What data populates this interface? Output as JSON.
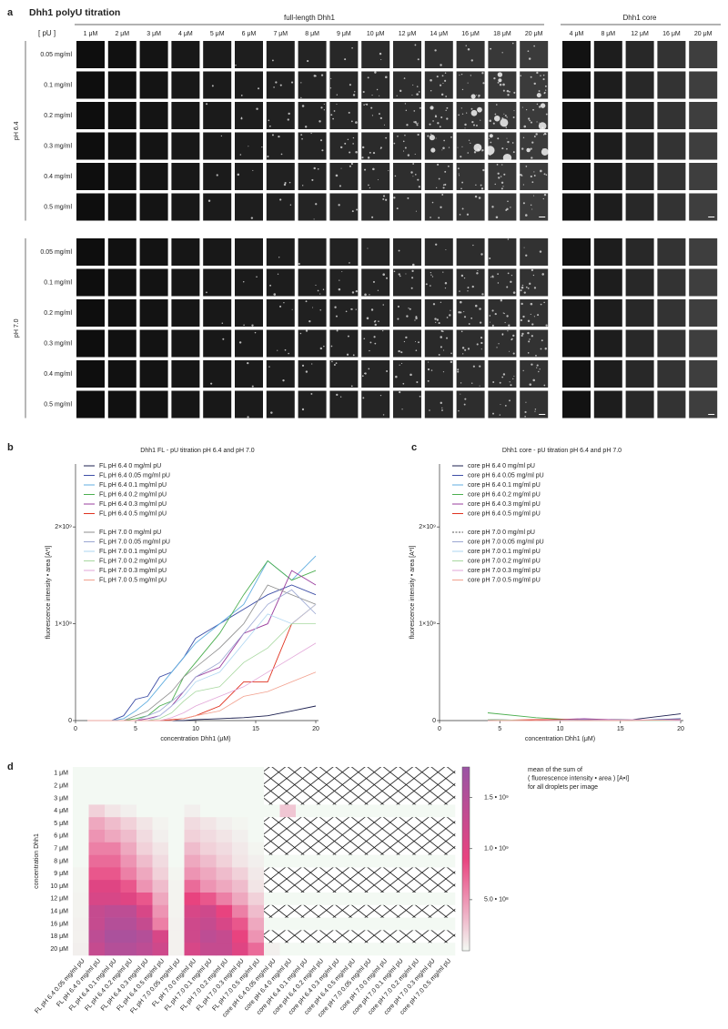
{
  "panel_labels": [
    "a",
    "b",
    "c",
    "d"
  ],
  "panel_a": {
    "title": "Dhh1 polyU titration",
    "fl_header": "full-length Dhh1",
    "core_header": "Dhh1 core",
    "pu_header": "[ pU ]",
    "fl_columns": [
      "1 μM",
      "2 μM",
      "3 μM",
      "4 μM",
      "5 μM",
      "6 μM",
      "7 μM",
      "8 μM",
      "9 μM",
      "10 μM",
      "12 μM",
      "14 μM",
      "16 μM",
      "18 μM",
      "20 μM"
    ],
    "core_columns": [
      "4 μM",
      "8 μM",
      "12 μM",
      "16 μM",
      "20 μM"
    ],
    "ph_groups": [
      {
        "label": "pH 6.4",
        "rows": [
          "0.05 mg/ml",
          "0.1 mg/ml",
          "0.2 mg/ml",
          "0.3 mg/ml",
          "0.4 mg/ml",
          "0.5 mg/ml"
        ]
      },
      {
        "label": "pH 7.0",
        "rows": [
          "0.05 mg/ml",
          "0.1 mg/ml",
          "0.2 mg/ml",
          "0.3 mg/ml",
          "0.4 mg/ml",
          "0.5 mg/ml"
        ]
      }
    ]
  },
  "chart_data": [
    {
      "type": "line",
      "title": "Dhh1 FL - pU titration pH 6.4 and pH 7.0",
      "xlabel": "concentration Dhh1 (μM)",
      "ylabel": "fluorescence intensity • area [A*I]",
      "x": [
        1,
        2,
        3,
        4,
        5,
        6,
        7,
        8,
        9,
        10,
        12,
        14,
        16,
        18,
        20
      ],
      "xlim": [
        0,
        20
      ],
      "ylim": [
        0,
        2650000000.0
      ],
      "xticks": [
        0,
        5,
        10,
        15,
        20
      ],
      "yticks": [
        0,
        {
          "value": 1000000000.0,
          "label": "1×10⁹"
        },
        {
          "value": 2000000000.0,
          "label": "2×10⁹"
        }
      ],
      "series": [
        {
          "name": "FL pH 6.4 0 mg/ml pU",
          "color": "#1b1f4f",
          "values": [
            0,
            0,
            0,
            0,
            0,
            0,
            0,
            0,
            0,
            10000000.0,
            20000000.0,
            30000000.0,
            50000000.0,
            100000000.0,
            150000000.0
          ]
        },
        {
          "name": "FL pH 6.4 0.05 mg/ml pU",
          "color": "#3d4ea6",
          "values": [
            0,
            0,
            0,
            50000000.0,
            220000000.0,
            250000000.0,
            450000000.0,
            500000000.0,
            650000000.0,
            850000000.0,
            1000000000.0,
            1150000000.0,
            1300000000.0,
            1400000000.0,
            1300000000.0
          ]
        },
        {
          "name": "FL pH 6.4 0.1 mg/ml pU",
          "color": "#62aee0",
          "values": [
            0,
            0,
            0,
            20000000.0,
            100000000.0,
            200000000.0,
            350000000.0,
            500000000.0,
            650000000.0,
            800000000.0,
            1000000000.0,
            1200000000.0,
            1650000000.0,
            1450000000.0,
            1700000000.0
          ]
        },
        {
          "name": "FL pH 6.4 0.2 mg/ml pU",
          "color": "#4caf50",
          "values": [
            0,
            0,
            0,
            0,
            20000000.0,
            50000000.0,
            150000000.0,
            200000000.0,
            450000000.0,
            600000000.0,
            900000000.0,
            1300000000.0,
            1650000000.0,
            1450000000.0,
            1550000000.0
          ]
        },
        {
          "name": "FL pH 6.4 0.3 mg/ml pU",
          "color": "#9a3e9e",
          "values": [
            0,
            0,
            0,
            0,
            0,
            20000000.0,
            50000000.0,
            150000000.0,
            300000000.0,
            450000000.0,
            550000000.0,
            900000000.0,
            1000000000.0,
            1550000000.0,
            1400000000.0
          ]
        },
        {
          "name": "FL pH 6.4 0.5 mg/ml pU",
          "color": "#e0321f",
          "values": [
            0,
            0,
            0,
            0,
            0,
            0,
            0,
            10000000.0,
            20000000.0,
            50000000.0,
            150000000.0,
            400000000.0,
            400000000.0,
            1000000000.0,
            1200000000.0
          ]
        },
        {
          "name": "FL pH 7.0 0 mg/ml pU",
          "color": "#8c8c8c",
          "values": [
            0,
            0,
            0,
            0,
            50000000.0,
            100000000.0,
            200000000.0,
            300000000.0,
            450000000.0,
            550000000.0,
            750000000.0,
            1000000000.0,
            1400000000.0,
            1300000000.0,
            1200000000.0
          ]
        },
        {
          "name": "FL pH 7.0 0.05 mg/ml pU",
          "color": "#9aa6d2",
          "values": [
            0,
            0,
            0,
            0,
            0,
            50000000.0,
            100000000.0,
            200000000.0,
            300000000.0,
            450000000.0,
            600000000.0,
            900000000.0,
            1200000000.0,
            1350000000.0,
            1100000000.0
          ]
        },
        {
          "name": "FL pH 7.0 0.1 mg/ml pU",
          "color": "#aed6f1",
          "values": [
            0,
            0,
            0,
            0,
            0,
            0,
            50000000.0,
            150000000.0,
            250000000.0,
            400000000.0,
            500000000.0,
            800000000.0,
            1100000000.0,
            1000000000.0,
            1200000000.0
          ]
        },
        {
          "name": "FL pH 7.0 0.2 mg/ml pU",
          "color": "#a8d8a0",
          "values": [
            0,
            0,
            0,
            0,
            0,
            0,
            20000000.0,
            80000000.0,
            200000000.0,
            300000000.0,
            350000000.0,
            600000000.0,
            750000000.0,
            1000000000.0,
            1000000000.0
          ]
        },
        {
          "name": "FL pH 7.0 0.3 mg/ml pU",
          "color": "#e2a6d8",
          "values": [
            0,
            0,
            0,
            0,
            0,
            0,
            0,
            30000000.0,
            80000000.0,
            150000000.0,
            250000000.0,
            350000000.0,
            500000000.0,
            650000000.0,
            800000000.0
          ]
        },
        {
          "name": "FL pH 7.0 0.5 mg/ml pU",
          "color": "#f2a08e",
          "values": [
            0,
            0,
            0,
            0,
            0,
            0,
            0,
            0,
            20000000.0,
            50000000.0,
            100000000.0,
            250000000.0,
            300000000.0,
            400000000.0,
            500000000.0
          ]
        }
      ]
    },
    {
      "type": "line",
      "title": "Dhh1 core - pU titration pH 6.4 and pH 7.0",
      "xlabel": "concentration Dhh1 (μM)",
      "ylabel": "fluorescence intensity • area [A*I]",
      "x": [
        4,
        8,
        12,
        16,
        20
      ],
      "xlim": [
        0,
        20
      ],
      "ylim": [
        0,
        2650000000.0
      ],
      "xticks": [
        0,
        5,
        10,
        15,
        20
      ],
      "yticks": [
        0,
        {
          "value": 1000000000.0,
          "label": "1×10⁹"
        },
        {
          "value": 2000000000.0,
          "label": "2×10⁹"
        }
      ],
      "series": [
        {
          "name": "core pH 6.4 0 mg/ml pU",
          "color": "#1b1f4f",
          "values": [
            10000000.0,
            0,
            10000000.0,
            10000000.0,
            70000000.0
          ]
        },
        {
          "name": "core pH 6.4 0.05 mg/ml pU",
          "color": "#3d4ea6",
          "values": [
            0,
            0,
            10000000.0,
            0,
            20000000.0
          ]
        },
        {
          "name": "core pH 6.4 0.1 mg/ml pU",
          "color": "#62aee0",
          "values": [
            0,
            0,
            0,
            0,
            10000000.0
          ]
        },
        {
          "name": "core pH 6.4 0.2 mg/ml pU",
          "color": "#4caf50",
          "values": [
            80000000.0,
            30000000.0,
            0,
            0,
            0
          ]
        },
        {
          "name": "core pH 6.4 0.3 mg/ml pU",
          "color": "#9a3e9e",
          "values": [
            0,
            0,
            20000000.0,
            0,
            10000000.0
          ]
        },
        {
          "name": "core pH 6.4 0.5 mg/ml pU",
          "color": "#e0321f",
          "values": [
            0,
            10000000.0,
            10000000.0,
            0,
            0
          ]
        },
        {
          "name": "core pH 7.0 0 mg/ml pU",
          "color": "#555555",
          "dashed": true,
          "values": [
            0,
            0,
            0,
            0,
            0
          ]
        },
        {
          "name": "core pH 7.0 0.05 mg/ml pU",
          "color": "#9aa6d2",
          "values": [
            0,
            0,
            10000000.0,
            0,
            0
          ]
        },
        {
          "name": "core pH 7.0 0.1 mg/ml pU",
          "color": "#aed6f1",
          "values": [
            0,
            0,
            0,
            0,
            0
          ]
        },
        {
          "name": "core pH 7.0 0.2 mg/ml pU",
          "color": "#a8d8a0",
          "values": [
            10000000.0,
            0,
            0,
            0,
            0
          ]
        },
        {
          "name": "core pH 7.0 0.3 mg/ml pU",
          "color": "#e2a6d8",
          "values": [
            0,
            0,
            0,
            10000000.0,
            0
          ]
        },
        {
          "name": "core pH 7.0 0.5 mg/ml pU",
          "color": "#f2a08e",
          "values": [
            0,
            0,
            0,
            0,
            10000000.0
          ]
        }
      ]
    },
    {
      "type": "heatmap",
      "ylabel": "concentration Dhh1",
      "rows": [
        "1 μM",
        "2 μM",
        "3 μM",
        "4 μM",
        "5 μM",
        "6 μM",
        "7 μM",
        "8 μM",
        "9 μM",
        "10 μM",
        "12 μM",
        "14 μM",
        "16 μM",
        "18 μM",
        "20 μM"
      ],
      "columns": [
        "FL pH 6.4 0.05 mg/ml pU",
        "FL pH 6.4 0 mg/ml pU",
        "FL pH 6.4 0.1 mg/ml pU",
        "FL pH 6.4 0.2 mg/ml pU",
        "FL pH 6.4 0.3 mg/ml pU",
        "FL pH 6.4 0.5 mg/ml pU",
        "FL pH 7.0 0.05 mg/ml pU",
        "FL pH 7.0 0 mg/ml pU",
        "FL pH 7.0 0.1 mg/ml pU",
        "FL pH 7.0 0.2 mg/ml pU",
        "FL pH 7.0 0.3 mg/ml pU",
        "FL pH 7.0 0.5 mg/ml pU",
        "core pH 6.4 0.05 mg/ml pU",
        "core pH 6.4 0 mg/ml pU",
        "core pH 6.4 0.1 mg/ml pU",
        "core pH 6.4 0.2 mg/ml pU",
        "core pH 6.4 0.3 mg/ml pU",
        "core pH 6.4 0.5 mg/ml pU",
        "core pH 7.0 0.05 mg/ml pU",
        "core pH 7.0 0 mg/ml pU",
        "core pH 7.0 0.1 mg/ml pU",
        "core pH 7.0 0.2 mg/ml pU",
        "core pH 7.0 0.3 mg/ml pU",
        "core pH 7.0 0.5 mg/ml pU"
      ],
      "values": [
        [
          0,
          0,
          0,
          0,
          0,
          0,
          0,
          0,
          0,
          0,
          0,
          0,
          null,
          null,
          null,
          null,
          null,
          null,
          null,
          null,
          null,
          null,
          null,
          null
        ],
        [
          0,
          0,
          0,
          0,
          0,
          0,
          0,
          0,
          0,
          0,
          0,
          0,
          null,
          null,
          null,
          null,
          null,
          null,
          null,
          null,
          null,
          null,
          null,
          null
        ],
        [
          0,
          0,
          0,
          0,
          0,
          0,
          0,
          0,
          0,
          0,
          0,
          0,
          null,
          null,
          null,
          null,
          null,
          null,
          null,
          null,
          null,
          null,
          null,
          null
        ],
        [
          0,
          200000000.0,
          100000000.0,
          50000000.0,
          0,
          0,
          0,
          50000000.0,
          0,
          0,
          0,
          0,
          0,
          250000000.0,
          0,
          0,
          0,
          0,
          0,
          0,
          0,
          0,
          0,
          0
        ],
        [
          0,
          400000000.0,
          300000000.0,
          200000000.0,
          100000000.0,
          30000000.0,
          0,
          150000000.0,
          100000000.0,
          50000000.0,
          20000000.0,
          0,
          null,
          null,
          null,
          null,
          null,
          null,
          null,
          null,
          null,
          null,
          null,
          null
        ],
        [
          0,
          500000000.0,
          400000000.0,
          300000000.0,
          150000000.0,
          50000000.0,
          0,
          200000000.0,
          150000000.0,
          100000000.0,
          50000000.0,
          0,
          null,
          null,
          null,
          null,
          null,
          null,
          null,
          null,
          null,
          null,
          null,
          null
        ],
        [
          0,
          600000000.0,
          600000000.0,
          400000000.0,
          200000000.0,
          100000000.0,
          0,
          300000000.0,
          200000000.0,
          150000000.0,
          80000000.0,
          20000000.0,
          null,
          null,
          null,
          null,
          null,
          null,
          null,
          null,
          null,
          null,
          null,
          null
        ],
        [
          0,
          700000000.0,
          700000000.0,
          500000000.0,
          300000000.0,
          150000000.0,
          0,
          400000000.0,
          300000000.0,
          200000000.0,
          100000000.0,
          50000000.0,
          0,
          0,
          0,
          0,
          0,
          0,
          0,
          0,
          0,
          0,
          0,
          0
        ],
        [
          20000000.0,
          800000000.0,
          800000000.0,
          600000000.0,
          400000000.0,
          200000000.0,
          20000000.0,
          500000000.0,
          400000000.0,
          300000000.0,
          200000000.0,
          80000000.0,
          null,
          null,
          null,
          null,
          null,
          null,
          null,
          null,
          null,
          null,
          null,
          null
        ],
        [
          20000000.0,
          1000000000.0,
          1000000000.0,
          800000000.0,
          500000000.0,
          300000000.0,
          30000000.0,
          700000000.0,
          500000000.0,
          400000000.0,
          300000000.0,
          100000000.0,
          null,
          null,
          null,
          null,
          null,
          null,
          null,
          null,
          null,
          null,
          null,
          null
        ],
        [
          30000000.0,
          1100000000.0,
          1100000000.0,
          1000000000.0,
          800000000.0,
          400000000.0,
          30000000.0,
          900000000.0,
          800000000.0,
          600000000.0,
          400000000.0,
          200000000.0,
          0,
          0,
          0,
          0,
          0,
          0,
          0,
          0,
          0,
          0,
          0,
          0
        ],
        [
          30000000.0,
          1300000000.0,
          1400000000.0,
          1400000000.0,
          1100000000.0,
          500000000.0,
          30000000.0,
          1100000000.0,
          1200000000.0,
          900000000.0,
          600000000.0,
          300000000.0,
          null,
          null,
          null,
          null,
          null,
          null,
          null,
          null,
          null,
          null,
          null,
          null
        ],
        [
          40000000.0,
          1300000000.0,
          1500000000.0,
          1500000000.0,
          1300000000.0,
          600000000.0,
          40000000.0,
          1200000000.0,
          1300000000.0,
          1100000000.0,
          800000000.0,
          400000000.0,
          0,
          0,
          0,
          0,
          0,
          0,
          0,
          0,
          0,
          0,
          0,
          0
        ],
        [
          40000000.0,
          1400000000.0,
          1600000000.0,
          1600000000.0,
          1500000000.0,
          1100000000.0,
          40000000.0,
          1200000000.0,
          1400000000.0,
          1300000000.0,
          900000000.0,
          500000000.0,
          null,
          null,
          null,
          null,
          null,
          null,
          null,
          null,
          null,
          null,
          null,
          null
        ],
        [
          50000000.0,
          1300000000.0,
          1500000000.0,
          1500000000.0,
          1400000000.0,
          1200000000.0,
          40000000.0,
          1100000000.0,
          1300000000.0,
          1300000000.0,
          1000000000.0,
          700000000.0,
          50000000.0,
          0,
          0,
          0,
          0,
          0,
          0,
          0,
          0,
          0,
          0,
          0
        ]
      ],
      "clim": [
        0,
        1800000000.0
      ],
      "colors": [
        "#f3f9f3",
        "#e8437f",
        "#9a55a4"
      ],
      "colorbar_ticks": [
        {
          "value": 500000000.0,
          "label": "5.0 • 10⁸"
        },
        {
          "value": 1000000000.0,
          "label": "1.0 • 10⁹"
        },
        {
          "value": 1500000000.0,
          "label": "1.5 • 10⁹"
        }
      ],
      "colorbar_label": [
        "mean of the sum of",
        "( fluorescence intensity • area ) [A•I]",
        "for all droplets per image"
      ]
    }
  ]
}
